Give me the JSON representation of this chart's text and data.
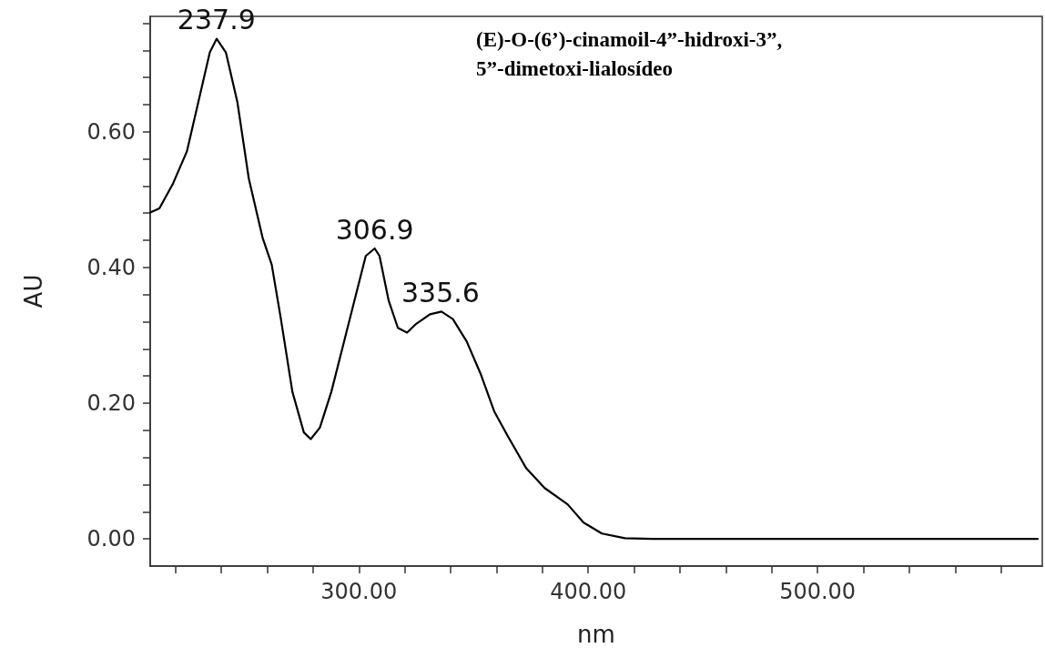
{
  "chart_data": {
    "type": "line",
    "title": "(E)-O-(6’)-cinamoil-4”-hidroxi-3”,5”-dimetoxi-lialosídeo",
    "xlabel": "nm",
    "ylabel": "AU",
    "x": [
      209,
      213,
      219,
      225,
      230,
      235,
      238,
      242,
      247,
      252,
      258,
      262,
      266,
      271,
      276,
      279,
      283,
      288,
      294,
      300,
      303,
      306.9,
      309,
      313,
      317,
      321,
      325,
      331,
      336,
      341,
      347,
      353,
      359,
      365,
      373,
      381,
      391,
      398,
      406,
      416,
      428,
      596
    ],
    "series": [
      {
        "color": "#000000",
        "values": [
          0.481,
          0.487,
          0.524,
          0.571,
          0.644,
          0.717,
          0.737,
          0.717,
          0.644,
          0.531,
          0.444,
          0.404,
          0.324,
          0.217,
          0.157,
          0.147,
          0.164,
          0.217,
          0.297,
          0.377,
          0.417,
          0.428,
          0.417,
          0.351,
          0.311,
          0.304,
          0.317,
          0.331,
          0.335,
          0.324,
          0.291,
          0.244,
          0.188,
          0.151,
          0.104,
          0.075,
          0.051,
          0.024,
          0.008,
          0.001,
          0,
          0
        ]
      }
    ],
    "annotations": [
      {
        "text": "237.9",
        "x": 237.9,
        "y": 0.737
      },
      {
        "text": "306.9",
        "x": 306.9,
        "y": 0.428
      },
      {
        "text": "335.6",
        "x": 335.6,
        "y": 0.335
      }
    ],
    "xlim": [
      209,
      598
    ],
    "ylim": [
      -0.04,
      0.77
    ],
    "xticks": [
      {
        "value": 220,
        "label": null
      },
      {
        "value": 240,
        "label": null
      },
      {
        "value": 260,
        "label": null
      },
      {
        "value": 280,
        "label": null
      },
      {
        "value": 300,
        "label": "300.00"
      },
      {
        "value": 320,
        "label": null
      },
      {
        "value": 340,
        "label": null
      },
      {
        "value": 360,
        "label": null
      },
      {
        "value": 380,
        "label": null
      },
      {
        "value": 400,
        "label": "400.00"
      },
      {
        "value": 420,
        "label": null
      },
      {
        "value": 440,
        "label": null
      },
      {
        "value": 460,
        "label": null
      },
      {
        "value": 480,
        "label": null
      },
      {
        "value": 500,
        "label": "500.00"
      },
      {
        "value": 520,
        "label": null
      },
      {
        "value": 540,
        "label": null
      },
      {
        "value": 560,
        "label": null
      },
      {
        "value": 580,
        "label": null
      }
    ],
    "yticks": [
      {
        "value": 0,
        "label": "0.00"
      },
      {
        "value": 0.04,
        "label": null
      },
      {
        "value": 0.08,
        "label": null
      },
      {
        "value": 0.12,
        "label": null
      },
      {
        "value": 0.16,
        "label": null
      },
      {
        "value": 0.2,
        "label": "0.20"
      },
      {
        "value": 0.24,
        "label": null
      },
      {
        "value": 0.28,
        "label": null
      },
      {
        "value": 0.32,
        "label": null
      },
      {
        "value": 0.36,
        "label": null
      },
      {
        "value": 0.4,
        "label": "0.40"
      },
      {
        "value": 0.44,
        "label": null
      },
      {
        "value": 0.48,
        "label": null
      },
      {
        "value": 0.52,
        "label": null
      },
      {
        "value": 0.56,
        "label": null
      },
      {
        "value": 0.6,
        "label": "0.60"
      },
      {
        "value": 0.64,
        "label": null
      },
      {
        "value": 0.68,
        "label": null
      },
      {
        "value": 0.72,
        "label": null
      },
      {
        "value": 0.76,
        "label": null
      }
    ],
    "grid": false,
    "marker": "none",
    "line_style": "solid"
  }
}
